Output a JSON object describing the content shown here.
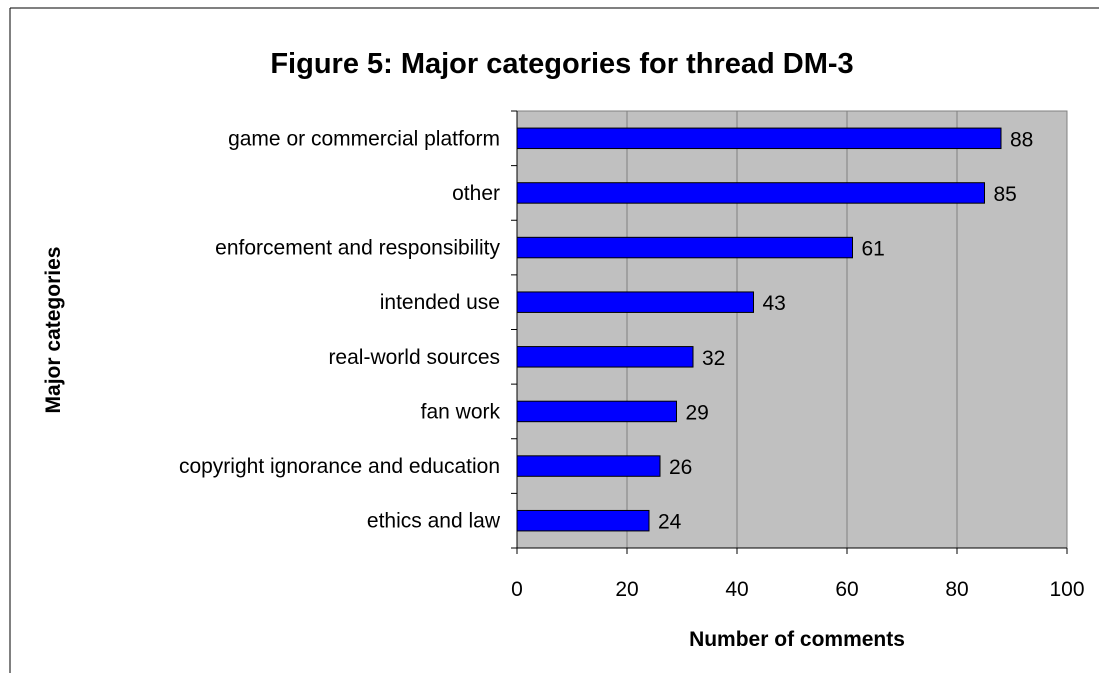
{
  "chart_data": {
    "type": "bar",
    "orientation": "horizontal",
    "title": "Figure 5: Major categories for thread DM-3",
    "xlabel": "Number of comments",
    "ylabel": "Major categories",
    "categories": [
      "game or commercial platform",
      "other",
      "enforcement and responsibility",
      "intended use",
      "real-world sources",
      "fan work",
      "copyright ignorance and education",
      "ethics and law"
    ],
    "values": [
      88,
      85,
      61,
      43,
      32,
      29,
      26,
      24
    ],
    "xlim": [
      0,
      100
    ],
    "xticks": [
      "0",
      "20",
      "40",
      "60",
      "80",
      "100"
    ],
    "grid": true,
    "legend": "none",
    "colors": {
      "bar_fill": "#0000ff",
      "bar_stroke": "#000000",
      "plot_background": "#c0c0c0",
      "gridline": "#808080",
      "text": "#000000"
    }
  }
}
